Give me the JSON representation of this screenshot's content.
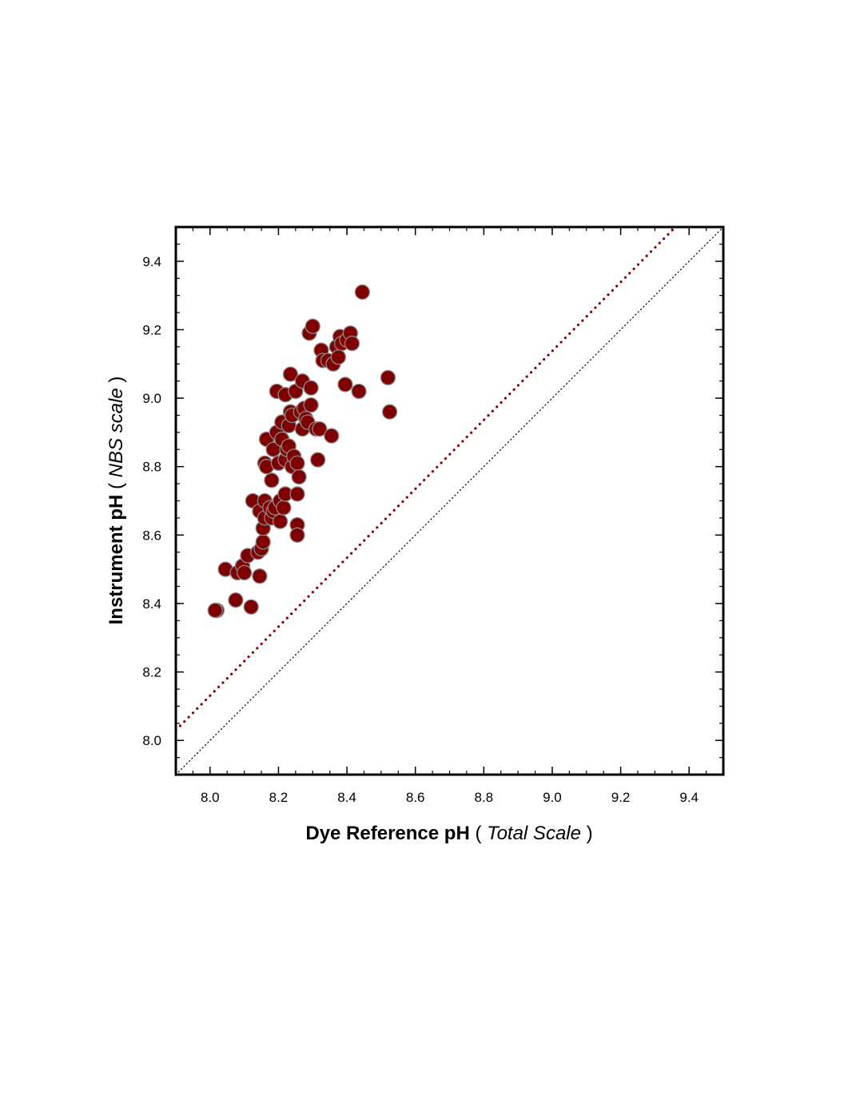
{
  "chart_data": {
    "type": "scatter",
    "title": "",
    "xlabel": {
      "main": "Dye Reference pH",
      "open": " ( ",
      "italic": "Total Scale",
      "close": " )"
    },
    "ylabel": {
      "main": "Instrument pH",
      "open": " ( ",
      "italic": "NBS scale",
      "close": " )"
    },
    "xlim": [
      7.9,
      9.5
    ],
    "ylim": [
      7.9,
      9.5
    ],
    "xticks": [
      "8.0",
      "8.2",
      "8.4",
      "8.6",
      "8.8",
      "9.0",
      "9.2",
      "9.4"
    ],
    "yticks": [
      "8.0",
      "8.2",
      "8.4",
      "8.6",
      "8.8",
      "9.0",
      "9.2",
      "9.4"
    ],
    "grid": false,
    "colors": {
      "marker_fill": "#7f0000",
      "marker_edge": "#8a8a8a",
      "fit_line": "#8b0000",
      "identity_line": "#000000"
    },
    "series": [
      {
        "marker": "circle",
        "points": [
          [
            8.02,
            8.38
          ],
          [
            8.015,
            8.38
          ],
          [
            8.045,
            8.5
          ],
          [
            8.075,
            8.41
          ],
          [
            8.08,
            8.49
          ],
          [
            8.095,
            8.51
          ],
          [
            8.1,
            8.49
          ],
          [
            8.11,
            8.54
          ],
          [
            8.12,
            8.39
          ],
          [
            8.125,
            8.7
          ],
          [
            8.145,
            8.48
          ],
          [
            8.14,
            8.55
          ],
          [
            8.15,
            8.56
          ],
          [
            8.145,
            8.67
          ],
          [
            8.155,
            8.58
          ],
          [
            8.155,
            8.62
          ],
          [
            8.16,
            8.65
          ],
          [
            8.16,
            8.7
          ],
          [
            8.16,
            8.81
          ],
          [
            8.165,
            8.8
          ],
          [
            8.165,
            8.88
          ],
          [
            8.175,
            8.68
          ],
          [
            8.18,
            8.65
          ],
          [
            8.18,
            8.76
          ],
          [
            8.185,
            8.67
          ],
          [
            8.185,
            8.85
          ],
          [
            8.19,
            8.68
          ],
          [
            8.195,
            8.9
          ],
          [
            8.195,
            9.02
          ],
          [
            8.2,
            8.81
          ],
          [
            8.205,
            8.7
          ],
          [
            8.205,
            8.64
          ],
          [
            8.21,
            8.88
          ],
          [
            8.21,
            8.93
          ],
          [
            8.215,
            8.68
          ],
          [
            8.22,
            8.72
          ],
          [
            8.22,
            8.82
          ],
          [
            8.22,
            9.01
          ],
          [
            8.225,
            8.85
          ],
          [
            8.23,
            8.86
          ],
          [
            8.23,
            8.92
          ],
          [
            8.235,
            9.07
          ],
          [
            8.235,
            8.96
          ],
          [
            8.24,
            8.8
          ],
          [
            8.24,
            8.95
          ],
          [
            8.245,
            8.83
          ],
          [
            8.25,
            9.02
          ],
          [
            8.255,
            8.63
          ],
          [
            8.255,
            8.6
          ],
          [
            8.255,
            8.72
          ],
          [
            8.255,
            8.81
          ],
          [
            8.26,
            8.77
          ],
          [
            8.265,
            8.96
          ],
          [
            8.27,
            9.05
          ],
          [
            8.27,
            8.91
          ],
          [
            8.275,
            8.97
          ],
          [
            8.28,
            8.94
          ],
          [
            8.285,
            8.93
          ],
          [
            8.29,
            9.19
          ],
          [
            8.295,
            9.03
          ],
          [
            8.295,
            8.98
          ],
          [
            8.3,
            9.21
          ],
          [
            8.31,
            8.91
          ],
          [
            8.315,
            8.82
          ],
          [
            8.32,
            8.91
          ],
          [
            8.325,
            9.14
          ],
          [
            8.33,
            9.11
          ],
          [
            8.345,
            9.11
          ],
          [
            8.355,
            8.89
          ],
          [
            8.36,
            9.1
          ],
          [
            8.37,
            9.15
          ],
          [
            8.375,
            9.12
          ],
          [
            8.38,
            9.18
          ],
          [
            8.385,
            9.16
          ],
          [
            8.395,
            9.04
          ],
          [
            8.4,
            9.17
          ],
          [
            8.41,
            9.19
          ],
          [
            8.415,
            9.16
          ],
          [
            8.435,
            9.02
          ],
          [
            8.445,
            9.31
          ],
          [
            8.52,
            9.06
          ],
          [
            8.525,
            8.96
          ]
        ]
      }
    ],
    "fit_line": {
      "style": "dotted",
      "from": [
        7.9,
        8.03
      ],
      "to": [
        9.36,
        9.5
      ]
    },
    "identity_line": {
      "style": "dotted",
      "from": [
        7.9,
        7.9
      ],
      "to": [
        9.5,
        9.5
      ]
    }
  }
}
